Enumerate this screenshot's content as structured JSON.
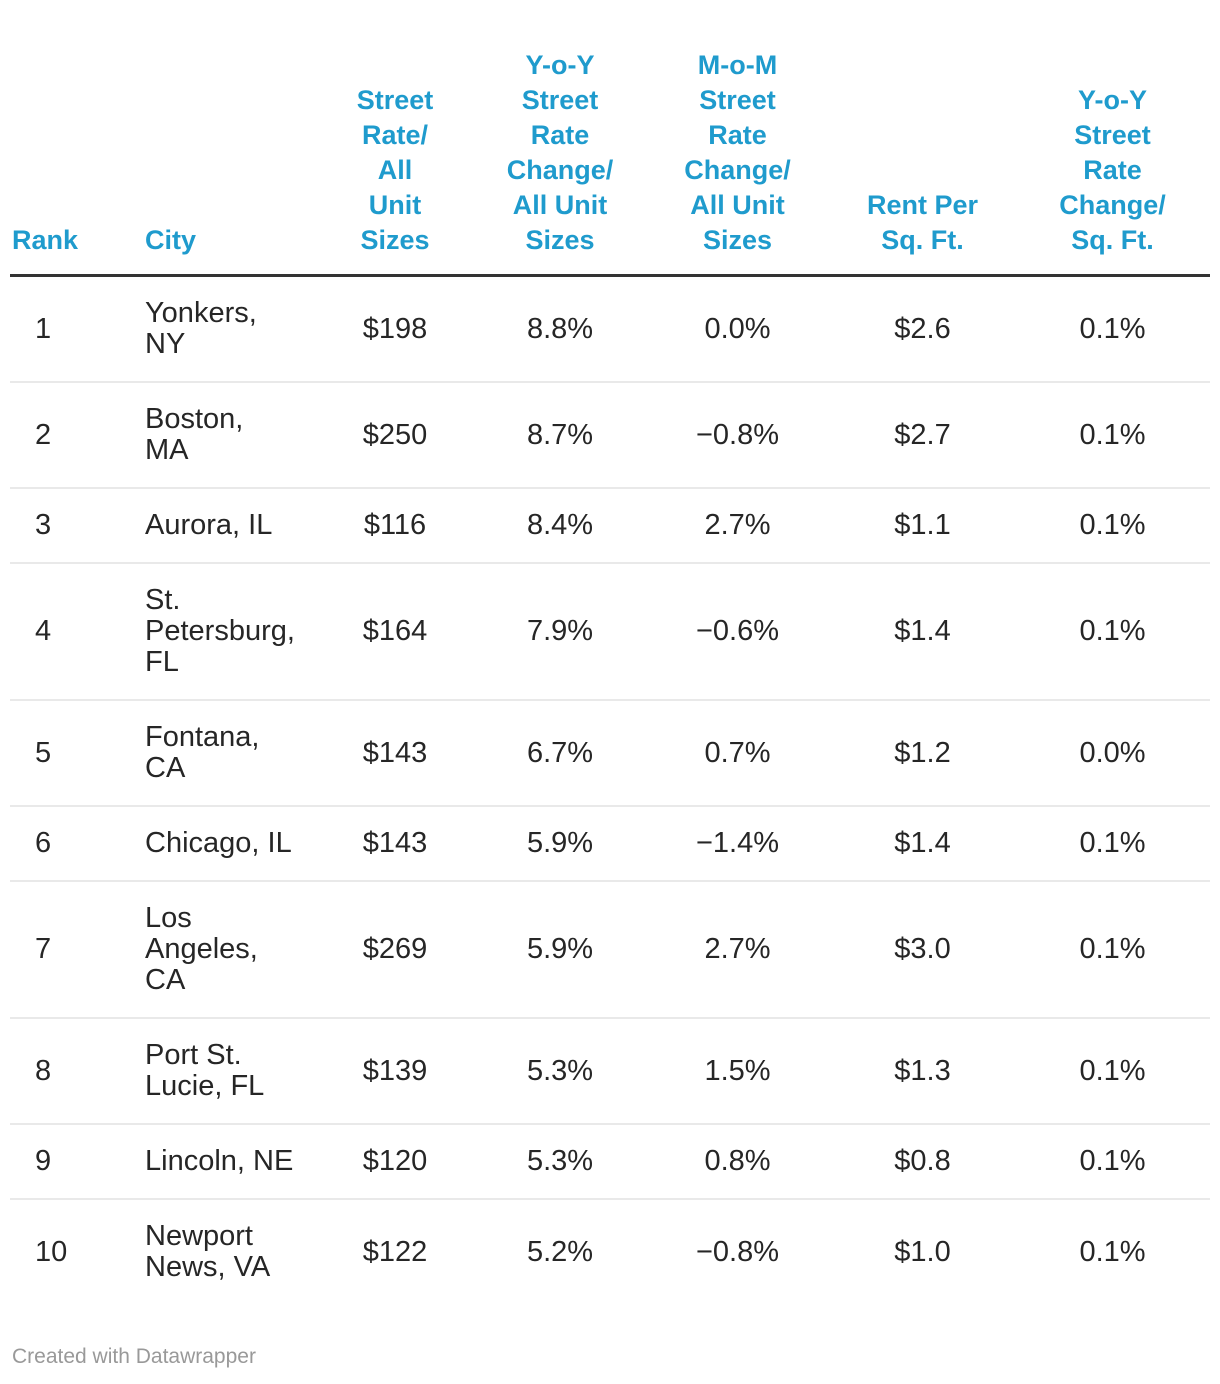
{
  "colors": {
    "header_text": "#1f9bcd",
    "header_rule": "#333333",
    "row_divider": "#e9e9e9",
    "body_text": "#262626",
    "credit_text": "#999999"
  },
  "table": {
    "columns": [
      {
        "key": "rank",
        "label": "Rank"
      },
      {
        "key": "city",
        "label": "City"
      },
      {
        "key": "street_rate",
        "label": "Street\nRate/\nAll\nUnit\nSizes"
      },
      {
        "key": "yoy_change",
        "label": "Y-o-Y\nStreet\nRate\nChange/\nAll Unit\nSizes"
      },
      {
        "key": "mom_change",
        "label": "M-o-M\nStreet\nRate\nChange/\nAll Unit\nSizes"
      },
      {
        "key": "rent_sqft",
        "label": "Rent Per\nSq. Ft."
      },
      {
        "key": "yoy_sqft",
        "label": "Y-o-Y\nStreet\nRate\nChange/\nSq. Ft."
      }
    ],
    "rows": [
      {
        "rank": "1",
        "city": "Yonkers,\nNY",
        "street_rate": "$198",
        "yoy_change": "8.8%",
        "mom_change": "0.0%",
        "rent_sqft": "$2.6",
        "yoy_sqft": "0.1%"
      },
      {
        "rank": "2",
        "city": "Boston,\nMA",
        "street_rate": "$250",
        "yoy_change": "8.7%",
        "mom_change": "−0.8%",
        "rent_sqft": "$2.7",
        "yoy_sqft": "0.1%"
      },
      {
        "rank": "3",
        "city": "Aurora, IL",
        "street_rate": "$116",
        "yoy_change": "8.4%",
        "mom_change": "2.7%",
        "rent_sqft": "$1.1",
        "yoy_sqft": "0.1%"
      },
      {
        "rank": "4",
        "city": "St.\nPetersburg,\nFL",
        "street_rate": "$164",
        "yoy_change": "7.9%",
        "mom_change": "−0.6%",
        "rent_sqft": "$1.4",
        "yoy_sqft": "0.1%"
      },
      {
        "rank": "5",
        "city": "Fontana,\nCA",
        "street_rate": "$143",
        "yoy_change": "6.7%",
        "mom_change": "0.7%",
        "rent_sqft": "$1.2",
        "yoy_sqft": "0.0%"
      },
      {
        "rank": "6",
        "city": "Chicago, IL",
        "street_rate": "$143",
        "yoy_change": "5.9%",
        "mom_change": "−1.4%",
        "rent_sqft": "$1.4",
        "yoy_sqft": "0.1%"
      },
      {
        "rank": "7",
        "city": "Los\nAngeles,\nCA",
        "street_rate": "$269",
        "yoy_change": "5.9%",
        "mom_change": "2.7%",
        "rent_sqft": "$3.0",
        "yoy_sqft": "0.1%"
      },
      {
        "rank": "8",
        "city": "Port St.\nLucie, FL",
        "street_rate": "$139",
        "yoy_change": "5.3%",
        "mom_change": "1.5%",
        "rent_sqft": "$1.3",
        "yoy_sqft": "0.1%"
      },
      {
        "rank": "9",
        "city": "Lincoln, NE",
        "street_rate": "$120",
        "yoy_change": "5.3%",
        "mom_change": "0.8%",
        "rent_sqft": "$0.8",
        "yoy_sqft": "0.1%"
      },
      {
        "rank": "10",
        "city": "Newport\nNews, VA",
        "street_rate": "$122",
        "yoy_change": "5.2%",
        "mom_change": "−0.8%",
        "rent_sqft": "$1.0",
        "yoy_sqft": "0.1%"
      }
    ]
  },
  "footer": {
    "credit": "Created with Datawrapper"
  },
  "chart_data": {
    "type": "table",
    "title": "",
    "columns": [
      "Rank",
      "City",
      "Street Rate/ All Unit Sizes",
      "Y-o-Y Street Rate Change/ All Unit Sizes",
      "M-o-M Street Rate Change/ All Unit Sizes",
      "Rent Per Sq. Ft.",
      "Y-o-Y Street Rate Change/ Sq. Ft."
    ],
    "rows": [
      [
        1,
        "Yonkers, NY",
        "$198",
        "8.8%",
        "0.0%",
        "$2.6",
        "0.1%"
      ],
      [
        2,
        "Boston, MA",
        "$250",
        "8.7%",
        "−0.8%",
        "$2.7",
        "0.1%"
      ],
      [
        3,
        "Aurora, IL",
        "$116",
        "8.4%",
        "2.7%",
        "$1.1",
        "0.1%"
      ],
      [
        4,
        "St. Petersburg, FL",
        "$164",
        "7.9%",
        "−0.6%",
        "$1.4",
        "0.1%"
      ],
      [
        5,
        "Fontana, CA",
        "$143",
        "6.7%",
        "0.7%",
        "$1.2",
        "0.0%"
      ],
      [
        6,
        "Chicago, IL",
        "$143",
        "5.9%",
        "−1.4%",
        "$1.4",
        "0.1%"
      ],
      [
        7,
        "Los Angeles, CA",
        "$269",
        "5.9%",
        "2.7%",
        "$3.0",
        "0.1%"
      ],
      [
        8,
        "Port St. Lucie, FL",
        "$139",
        "5.3%",
        "1.5%",
        "$1.3",
        "0.1%"
      ],
      [
        9,
        "Lincoln, NE",
        "$120",
        "5.3%",
        "0.8%",
        "$0.8",
        "0.1%"
      ],
      [
        10,
        "Newport News, VA",
        "$122",
        "5.2%",
        "−0.8%",
        "$1.0",
        "0.1%"
      ]
    ]
  }
}
